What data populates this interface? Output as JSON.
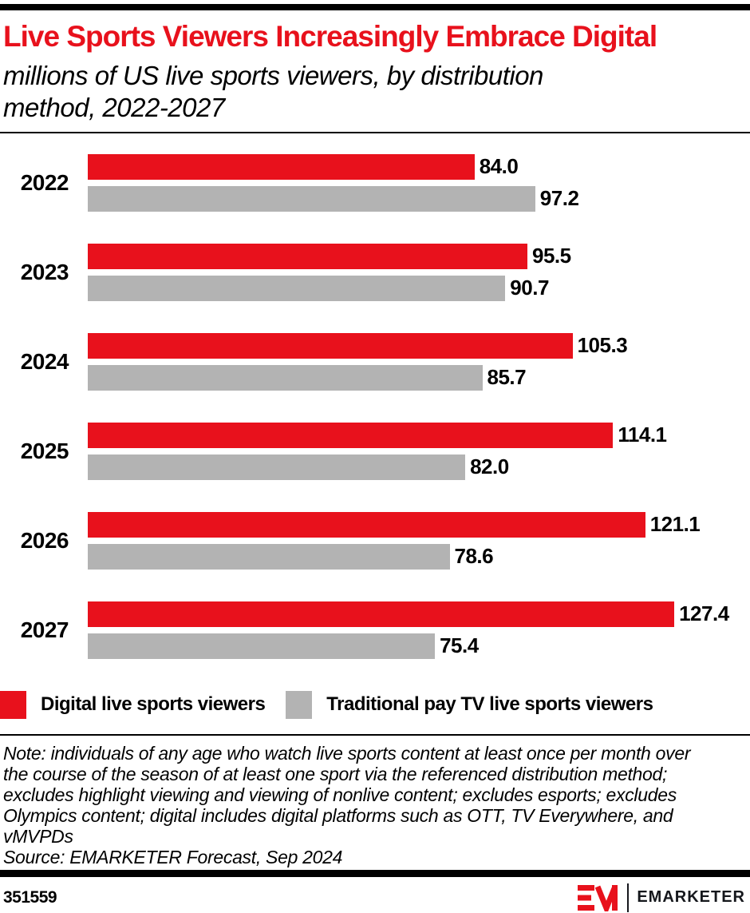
{
  "header": {
    "title": "Live Sports Viewers Increasingly Embrace Digital",
    "subtitle": "millions of US live sports viewers, by distribution method, 2022-2027",
    "subtitle_lines": [
      "millions of US live sports viewers, by distribution",
      "method, 2022-2027"
    ]
  },
  "chart_data": {
    "type": "bar",
    "orientation": "horizontal",
    "title": "Live Sports Viewers Increasingly Embrace Digital",
    "subtitle": "millions of US live sports viewers, by distribution method, 2022-2027",
    "unit": "millions",
    "categories": [
      "2022",
      "2023",
      "2024",
      "2025",
      "2026",
      "2027"
    ],
    "series": [
      {
        "name": "Digital live sports viewers",
        "color": "#e8111c",
        "values": [
          84.0,
          95.5,
          105.3,
          114.1,
          121.1,
          127.4
        ],
        "display_values": [
          "84.0",
          "95.5",
          "105.3",
          "114.1",
          "121.1",
          "127.4"
        ]
      },
      {
        "name": "Traditional pay TV live sports viewers",
        "color": "#b3b3b3",
        "values": [
          97.2,
          90.7,
          85.7,
          82.0,
          78.6,
          75.4
        ],
        "display_values": [
          "97.2",
          "90.7",
          "85.7",
          "82.0",
          "78.6",
          "75.4"
        ]
      }
    ],
    "xlim": [
      0,
      131
    ],
    "grid": false,
    "legend_position": "bottom",
    "data_labels": true
  },
  "legend": {
    "items": [
      {
        "label": "Digital live sports viewers",
        "color": "#e8111c"
      },
      {
        "label": "Traditional pay TV live sports viewers",
        "color": "#b3b3b3"
      }
    ]
  },
  "note": {
    "lines": [
      "Note: individuals of any age who watch live sports content at least once per month over",
      "the course of the season of at least one sport via the referenced distribution method;",
      "excludes highlight viewing and viewing of nonlive content; excludes esports; excludes",
      "Olympics content; digital includes digital platforms such as OTT, TV Everywhere, and",
      "vMVPDs"
    ],
    "source": "Source: EMARKETER Forecast, Sep 2024"
  },
  "footer": {
    "chart_id": "351559",
    "brand_name": "EMARKETER",
    "logo_mark": "EM-monogram",
    "brand_red": "#e8111c"
  }
}
